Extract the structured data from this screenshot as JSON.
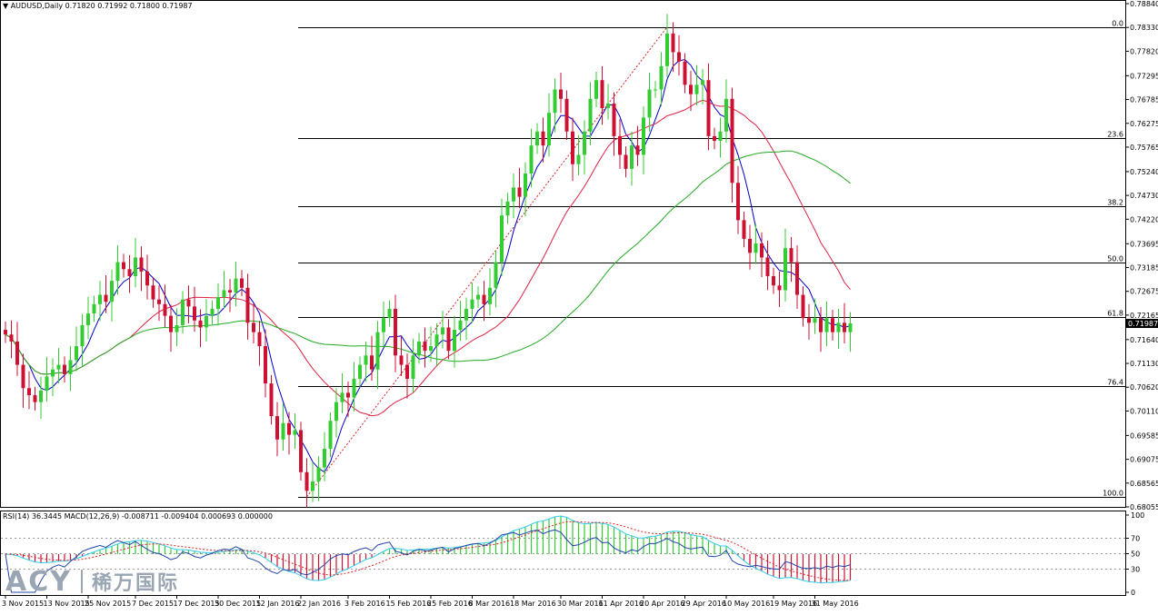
{
  "header": {
    "symbol": "AUDUSD,Daily",
    "ohlc": "0.71820 0.71992 0.71800 0.71987"
  },
  "indicator_header": "RSI(14) 36.3445  MACD(12,26,9) -0.008711 -0.009404 0.000693 0.000000",
  "watermark": {
    "latin": "ACY",
    "cjk": "稀万国际"
  },
  "colors": {
    "bull": "#33cc33",
    "bear": "#cc1133",
    "ma_fast": "#0000cc",
    "ma_mid": "#dd2244",
    "ma_slow": "#22aa22",
    "rsi": "#2244aa",
    "macd_main": "#33ccee",
    "macd_signal": "#dd2222",
    "fib": "#000000",
    "price_tag": "#000000"
  },
  "chart_data": {
    "type": "candlestick",
    "symbol": "AUDUSD",
    "timeframe": "Daily",
    "y_range": [
      0.68055,
      0.7884
    ],
    "y_ticks": [
      "0.78840",
      "0.78330",
      "0.77820",
      "0.77295",
      "0.76785",
      "0.76275",
      "0.75765",
      "0.75240",
      "0.74730",
      "0.74220",
      "0.73695",
      "0.73185",
      "0.72675",
      "0.72165",
      "0.71640",
      "0.71130",
      "0.70620",
      "0.70110",
      "0.69585",
      "0.69075",
      "0.68565",
      "0.68055"
    ],
    "current_price": "0.71987",
    "x_labels": [
      "3 Nov 2015",
      "13 Nov 2015",
      "25 Nov 2015",
      "7 Dec 2015",
      "17 Dec 2015",
      "30 Dec 2015",
      "12 Jan 2016",
      "22 Jan 2016",
      "3 Feb 2016",
      "15 Feb 2016",
      "25 Feb 2016",
      "8 Mar 2016",
      "18 Mar 2016",
      "30 Mar 2016",
      "11 Apr 2016",
      "20 Apr 2016",
      "29 Apr 2016",
      "10 May 2016",
      "19 May 2016",
      "31 May 2016"
    ],
    "fibonacci": {
      "high": 0.7834,
      "low": 0.6827,
      "levels": [
        {
          "label": "0.0",
          "value": 0.7834
        },
        {
          "label": "23.6",
          "value": 0.7596
        },
        {
          "label": "38.2",
          "value": 0.7449
        },
        {
          "label": "50.0",
          "value": 0.733
        },
        {
          "label": "61.8",
          "value": 0.7212
        },
        {
          "label": "76.4",
          "value": 0.7064
        },
        {
          "label": "100.0",
          "value": 0.6827
        }
      ]
    },
    "close": [
      0.7175,
      0.716,
      0.711,
      0.706,
      0.7045,
      0.703,
      0.7055,
      0.7085,
      0.71,
      0.711,
      0.709,
      0.712,
      0.715,
      0.7195,
      0.722,
      0.724,
      0.726,
      0.7245,
      0.729,
      0.733,
      0.7315,
      0.73,
      0.734,
      0.731,
      0.728,
      0.725,
      0.724,
      0.7215,
      0.718,
      0.7195,
      0.725,
      0.7235,
      0.7205,
      0.719,
      0.7215,
      0.723,
      0.7255,
      0.727,
      0.7265,
      0.7295,
      0.7275,
      0.72,
      0.718,
      0.715,
      0.707,
      0.7,
      0.695,
      0.6985,
      0.696,
      0.697,
      0.688,
      0.684,
      0.686,
      0.689,
      0.693,
      0.699,
      0.703,
      0.705,
      0.704,
      0.708,
      0.711,
      0.713,
      0.71,
      0.718,
      0.721,
      0.723,
      0.713,
      0.711,
      0.708,
      0.713,
      0.716,
      0.714,
      0.715,
      0.7175,
      0.719,
      0.714,
      0.7185,
      0.7205,
      0.723,
      0.725,
      0.726,
      0.724,
      0.7275,
      0.733,
      0.743,
      0.746,
      0.749,
      0.747,
      0.752,
      0.758,
      0.761,
      0.758,
      0.765,
      0.77,
      0.768,
      0.761,
      0.754,
      0.756,
      0.761,
      0.768,
      0.772,
      0.766,
      0.767,
      0.76,
      0.756,
      0.753,
      0.758,
      0.756,
      0.764,
      0.77,
      0.77,
      0.775,
      0.782,
      0.778,
      0.776,
      0.771,
      0.769,
      0.771,
      0.772,
      0.76,
      0.759,
      0.761,
      0.768,
      0.75,
      0.742,
      0.738,
      0.735,
      0.737,
      0.734,
      0.73,
      0.728,
      0.727,
      0.736,
      0.733,
      0.726,
      0.721,
      0.72,
      0.721,
      0.718,
      0.721,
      0.718,
      0.72,
      0.718,
      0.7199
    ],
    "ma_fast_period": 5,
    "ma_mid_period": 20,
    "ma_slow_period": 50,
    "rsi": {
      "period": 14,
      "value": 36.3445,
      "levels": [
        100,
        70,
        50,
        30,
        0
      ]
    },
    "macd": {
      "fast": 12,
      "slow": 26,
      "signal": 9,
      "main": -0.008711,
      "signal_value": -0.009404,
      "histogram": 0.000693
    }
  }
}
